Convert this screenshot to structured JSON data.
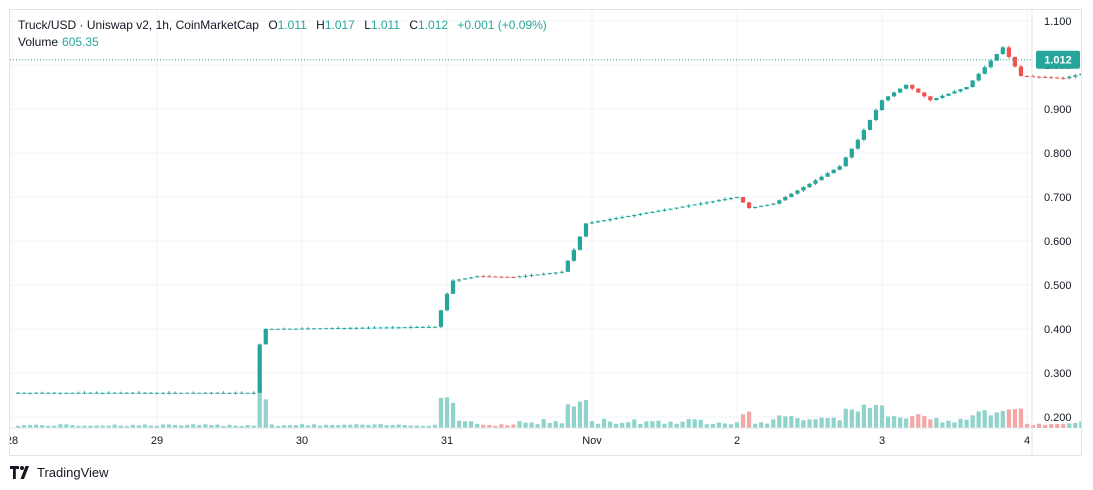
{
  "header": {
    "symbol": "Truck/USD · Uniswap v2, 1h, CoinMarketCap",
    "open_label": "O",
    "open": "1.011",
    "high_label": "H",
    "high": "1.017",
    "low_label": "L",
    "low": "1.011",
    "close_label": "C",
    "close": "1.012",
    "change": "+0.001 (+0.09%)",
    "volume_label": "Volume",
    "volume": "605.35"
  },
  "last_price_tag": "1.012",
  "footer": {
    "brand": "TradingView"
  },
  "colors": {
    "up": "#26a69a",
    "down": "#ef5350",
    "volume_up": "#8fd3cb",
    "volume_down": "#f5a7a6",
    "grid": "#f0f3fa",
    "tag_bg": "#26a69a"
  },
  "chart_data": {
    "type": "candlestick",
    "title": "Truck/USD · Uniswap v2, 1h, CoinMarketCap",
    "x_ticks": [
      "28",
      "29",
      "30",
      "31",
      "Nov",
      "2",
      "3",
      "4"
    ],
    "y_ticks": [
      "0.200",
      "0.300",
      "0.400",
      "0.500",
      "0.600",
      "0.700",
      "0.800",
      "0.900",
      "1.000",
      "1.100"
    ],
    "y_range": [
      0.175,
      1.125
    ],
    "x_range_days": [
      "2022-10-28",
      "2022-11-04"
    ],
    "grid": true,
    "last_price": 1.012,
    "close_series": [
      {
        "t": "10-28 00:00",
        "c": 0.255
      },
      {
        "t": "10-29 16:00",
        "c": 0.255
      },
      {
        "t": "10-29 17:00",
        "c": 0.365
      },
      {
        "t": "10-29 18:00",
        "c": 0.4
      },
      {
        "t": "10-30 22:00",
        "c": 0.405
      },
      {
        "t": "10-31 00:00",
        "c": 0.48
      },
      {
        "t": "10-31 01:00",
        "c": 0.51
      },
      {
        "t": "10-31 05:00",
        "c": 0.52
      },
      {
        "t": "10-31 11:00",
        "c": 0.518
      },
      {
        "t": "10-31 19:00",
        "c": 0.53
      },
      {
        "t": "10-31 21:00",
        "c": 0.58
      },
      {
        "t": "10-31 23:00",
        "c": 0.64
      },
      {
        "t": "11-01 00:00",
        "c": 0.7
      },
      {
        "t": "11-01 02:00",
        "c": 0.675
      },
      {
        "t": "11-01 06:00",
        "c": 0.685
      },
      {
        "t": "11-01 12:00",
        "c": 0.73
      },
      {
        "t": "11-01 17:00",
        "c": 0.77
      },
      {
        "t": "11-01 20:00",
        "c": 0.83
      },
      {
        "t": "11-02 00:00",
        "c": 0.92
      },
      {
        "t": "11-02 04:00",
        "c": 0.955
      },
      {
        "t": "11-02 08:00",
        "c": 0.92
      },
      {
        "t": "11-02 14:00",
        "c": 0.95
      },
      {
        "t": "11-02 20:00",
        "c": 1.04
      },
      {
        "t": "11-02 23:00",
        "c": 0.975
      },
      {
        "t": "11-03 06:00",
        "c": 0.97
      },
      {
        "t": "11-03 12:00",
        "c": 0.99
      },
      {
        "t": "11-03 15:00",
        "c": 1.012
      }
    ],
    "volume_note": "relative volume bars, green = up, red = down"
  }
}
